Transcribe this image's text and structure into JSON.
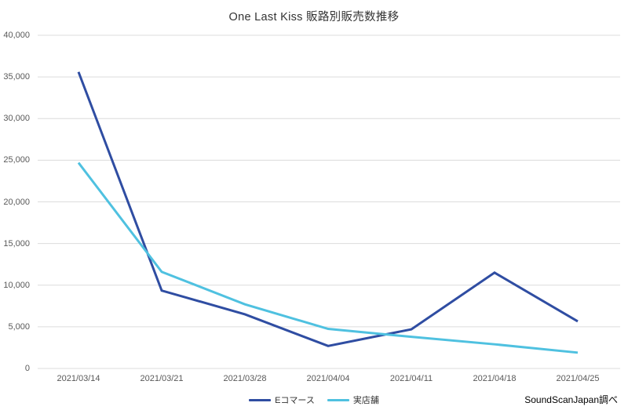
{
  "chart_data": {
    "type": "line",
    "title": "One Last Kiss 販路別販売数推移",
    "x": [
      "2021/03/14",
      "2021/03/21",
      "2021/03/28",
      "2021/04/04",
      "2021/04/11",
      "2021/04/18",
      "2021/04/25"
    ],
    "series": [
      {
        "name": "Eコマース",
        "color": "#2f4da2",
        "values": [
          35600,
          9350,
          6500,
          2700,
          4700,
          11500,
          5650
        ]
      },
      {
        "name": "実店舗",
        "color": "#4fc1e0",
        "values": [
          24700,
          11600,
          7700,
          4750,
          3800,
          2900,
          1900
        ]
      }
    ],
    "ylim": [
      0,
      40000
    ],
    "ytick_step": 5000,
    "ytick_labels": [
      "0",
      "5,000",
      "10,000",
      "15,000",
      "20,000",
      "25,000",
      "30,000",
      "35,000",
      "40,000"
    ],
    "grid": "horizontal",
    "gridline_color": "#dcdcdc",
    "legend_position": "bottom-center",
    "source_note": "SoundScanJapan調べ"
  }
}
